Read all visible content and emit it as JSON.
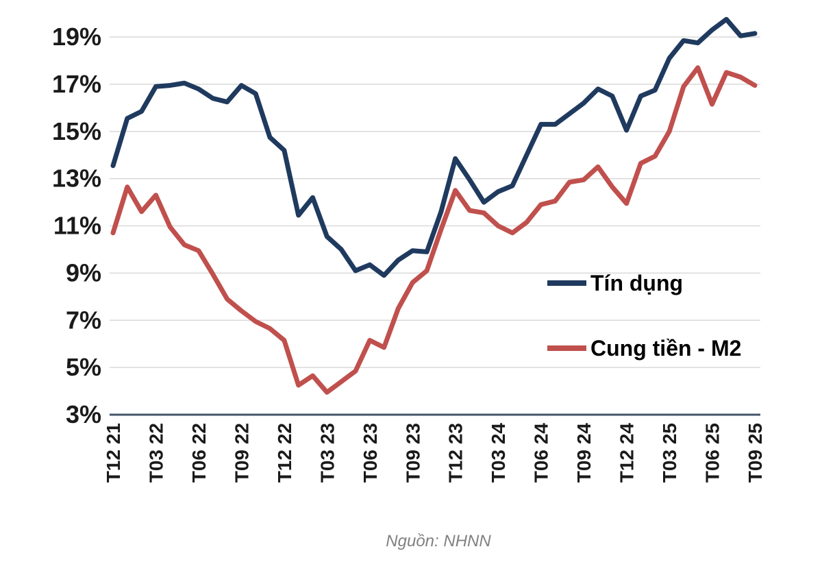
{
  "chart_data": {
    "type": "line",
    "title": "",
    "unit": "%",
    "n_points": 46,
    "x_frequency": "monthly",
    "x_tick_labels": [
      "T12 21",
      "T03 22",
      "T06 22",
      "T09 22",
      "T12 22",
      "T03 23",
      "T06 23",
      "T09 23",
      "T12 23",
      "T03 24",
      "T06 24",
      "T09 24",
      "T12 24",
      "T03 25",
      "T06 25",
      "T09 25"
    ],
    "x_tick_indices": [
      0,
      3,
      6,
      9,
      12,
      15,
      18,
      21,
      24,
      27,
      30,
      33,
      36,
      39,
      42,
      45
    ],
    "y_tick_labels": [
      "3%",
      "5%",
      "7%",
      "9%",
      "11%",
      "13%",
      "15%",
      "17%",
      "19%"
    ],
    "y_tick_values": [
      3,
      5,
      7,
      9,
      11,
      13,
      15,
      17,
      19
    ],
    "ylim": [
      3,
      19
    ],
    "grid": "horizontal-only",
    "legend_position": "inside-right-middle",
    "series": [
      {
        "name": "Tín dụng",
        "color": "#1f3a5e",
        "values": [
          13.55,
          15.55,
          15.85,
          16.9,
          16.95,
          17.05,
          16.8,
          16.4,
          16.25,
          16.95,
          16.6,
          14.75,
          14.2,
          11.45,
          12.2,
          10.55,
          10.0,
          9.1,
          9.35,
          8.9,
          9.55,
          9.95,
          9.9,
          11.6,
          13.85,
          12.95,
          12.0,
          12.45,
          12.7,
          14.0,
          15.3,
          15.3,
          15.75,
          16.2,
          16.8,
          16.5,
          15.05,
          16.5,
          16.75,
          18.1,
          18.85,
          18.75,
          19.3,
          19.75,
          19.05,
          19.15
        ]
      },
      {
        "name": "Cung tiền - M2",
        "color": "#c0504d",
        "values": [
          10.7,
          12.65,
          11.6,
          12.3,
          10.95,
          10.2,
          9.95,
          8.95,
          7.9,
          7.4,
          6.95,
          6.65,
          6.15,
          4.25,
          4.65,
          3.95,
          4.4,
          4.85,
          6.15,
          5.85,
          7.5,
          8.6,
          9.1,
          10.85,
          12.5,
          11.65,
          11.55,
          11.0,
          10.7,
          11.15,
          11.9,
          12.05,
          12.85,
          12.95,
          13.5,
          12.65,
          11.95,
          13.65,
          13.95,
          15.0,
          16.9,
          17.7,
          16.15,
          17.5,
          17.3,
          16.95
        ]
      }
    ],
    "source_note": "Nguồn: NHNN"
  },
  "colors": {
    "background": "#ffffff",
    "gridline": "#d9d9d9",
    "axis_line": "#44546a",
    "tick_label": "#1a1a1a",
    "legend_text": "#000000",
    "source_text": "#808080"
  }
}
